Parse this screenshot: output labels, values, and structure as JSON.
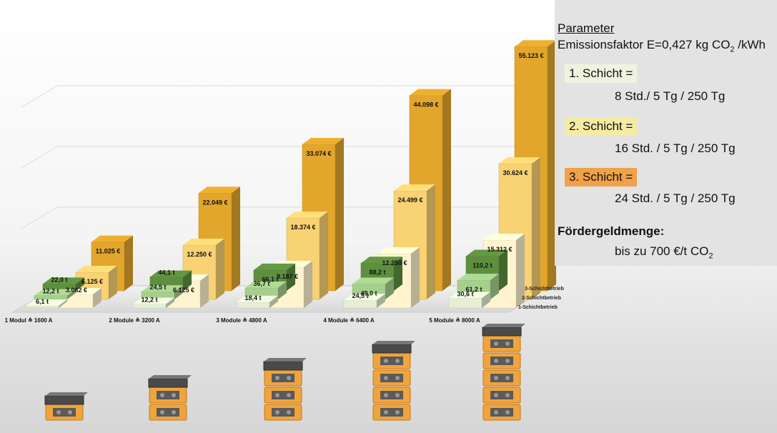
{
  "chart_data": {
    "type": "bar",
    "categories": [
      "1 Modul ≙ 1600 A",
      "2 Module ≙ 3200 A",
      "3 Module ≙ 4800 A",
      "4 Module ≙ 6400 A",
      "5 Module ≙ 8000 A"
    ],
    "modules": [
      1,
      2,
      3,
      4,
      5
    ],
    "depth_labels": [
      "3-Schichtbetrieb",
      "2-Schichtbetrieb",
      "1-Schichtbetrieb"
    ],
    "series": [
      {
        "name": "1-Schichtbetrieb",
        "values": [
          6.1,
          12.2,
          18.4,
          24.5,
          30.6
        ],
        "labels": [
          "6,1 t",
          "12,2 t",
          "18,4 t",
          "24,5 t",
          "30,6 t"
        ],
        "color": "#e6efd6"
      },
      {
        "name": "2-Schichtbetrieb",
        "values": [
          12.2,
          24.5,
          36.7,
          49.0,
          61.2
        ],
        "labels": [
          "12,2 t",
          "24,5 t",
          "36,7 t",
          "49,0 t",
          "61,2 t"
        ],
        "color": "#a6cf8d"
      },
      {
        "name": "3-Schichtbetrieb",
        "values": [
          22.0,
          44.1,
          66.1,
          88.2,
          110.2
        ],
        "labels": [
          "22,0 t",
          "44,1 t",
          "66,1 t",
          "88,2 t",
          "110,2 t"
        ],
        "color": "#5e8f3f"
      },
      {
        "name": "1-Schichtbetrieb €",
        "values": [
          3062,
          6125,
          9187,
          12250,
          15312
        ],
        "labels": [
          "3.062 €",
          "6.125 €",
          "9.187 €",
          "12.250 €",
          "15.312 €"
        ],
        "color": "#fff4cf"
      },
      {
        "name": "2-Schichtbetrieb €",
        "values": [
          6125,
          12250,
          18374,
          24499,
          30624
        ],
        "labels": [
          "6.125 €",
          "12.250 €",
          "18.374 €",
          "24.499 €",
          "30.624 €"
        ],
        "color": "#f8d273"
      },
      {
        "name": "3-Schichtbetrieb €",
        "values": [
          11025,
          22049,
          33074,
          44098,
          55123
        ],
        "labels": [
          "11.025 €",
          "22.049 €",
          "33.074 €",
          "44.098 €",
          "55.123 €"
        ],
        "color": "#e2a62c"
      }
    ]
  },
  "panel": {
    "title": "Parameter",
    "emission_prefix": "Emissionsfaktor E=0,427 kg CO",
    "emission_sub": "2",
    "emission_suffix": " /kWh",
    "shifts": [
      {
        "label": "1. Schicht =",
        "detail": "8 Std./ 5 Tg / 250 Tg",
        "color": "#eef3df"
      },
      {
        "label": "2. Schicht =",
        "detail": "16 Std. / 5 Tg / 250 Tg",
        "color": "#f5eba3"
      },
      {
        "label": "3. Schicht =",
        "detail": "24 Std. / 5 Tg / 250 Tg",
        "color": "#f0a24a"
      }
    ],
    "funding_title": "Fördergeldmenge:",
    "funding_prefix": "bis zu 700 €/t CO",
    "funding_sub": "2"
  }
}
